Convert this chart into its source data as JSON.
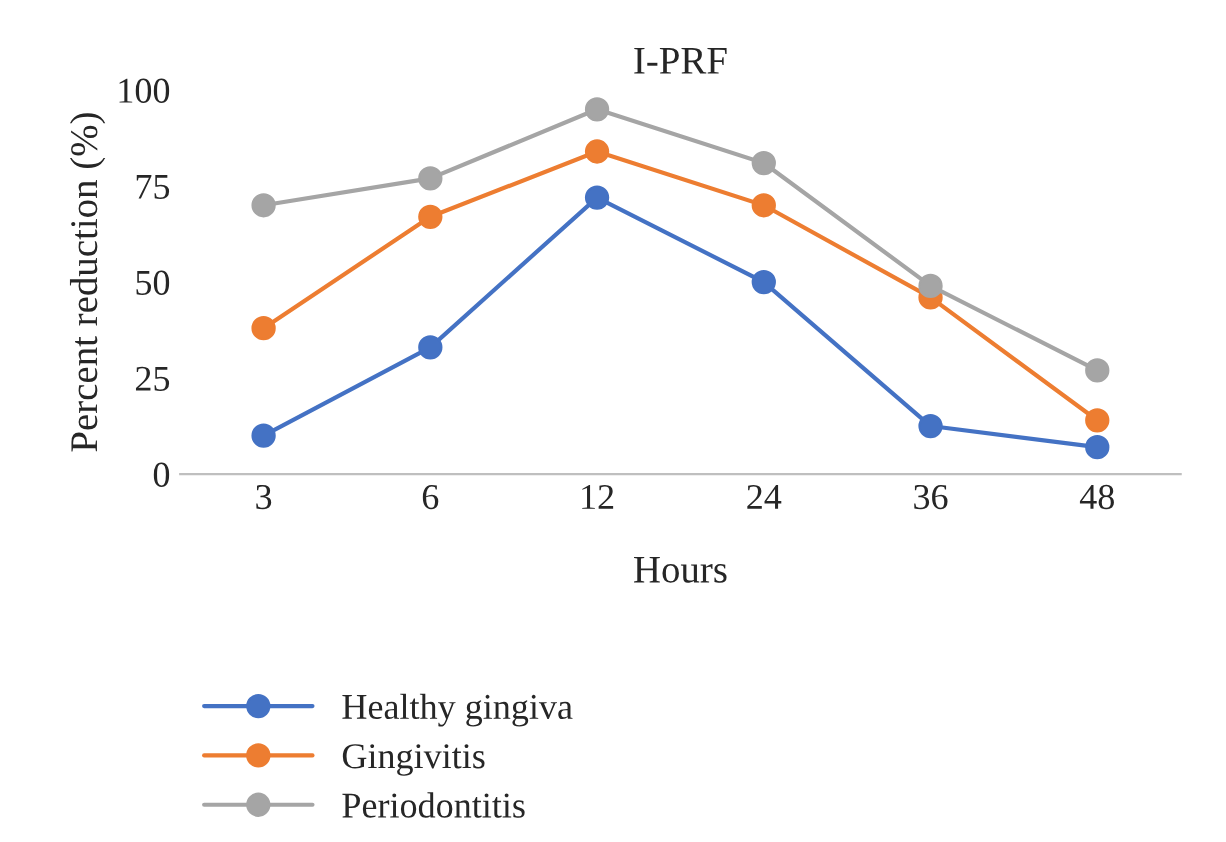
{
  "chart_data": {
    "type": "line",
    "title": "I-PRF",
    "xlabel": "Hours",
    "ylabel": "Percent reduction (%)",
    "categories": [
      "3",
      "6",
      "12",
      "24",
      "36",
      "48"
    ],
    "series": [
      {
        "name": "Healthy gingiva",
        "color": "#4472c4",
        "values": [
          10,
          33,
          72,
          50,
          12.5,
          7
        ]
      },
      {
        "name": "Gingivitis",
        "color": "#ed7d31",
        "values": [
          38,
          67,
          84,
          70,
          46,
          14
        ]
      },
      {
        "name": "Periodontitis",
        "color": "#a5a5a5",
        "values": [
          70,
          77,
          95,
          81,
          49,
          27
        ]
      }
    ],
    "ylim": [
      0,
      100
    ],
    "yticks": [
      0,
      25,
      50,
      75,
      100
    ],
    "grid": false,
    "legend": "bottom left",
    "marker": "circle",
    "line_style": "solid"
  }
}
